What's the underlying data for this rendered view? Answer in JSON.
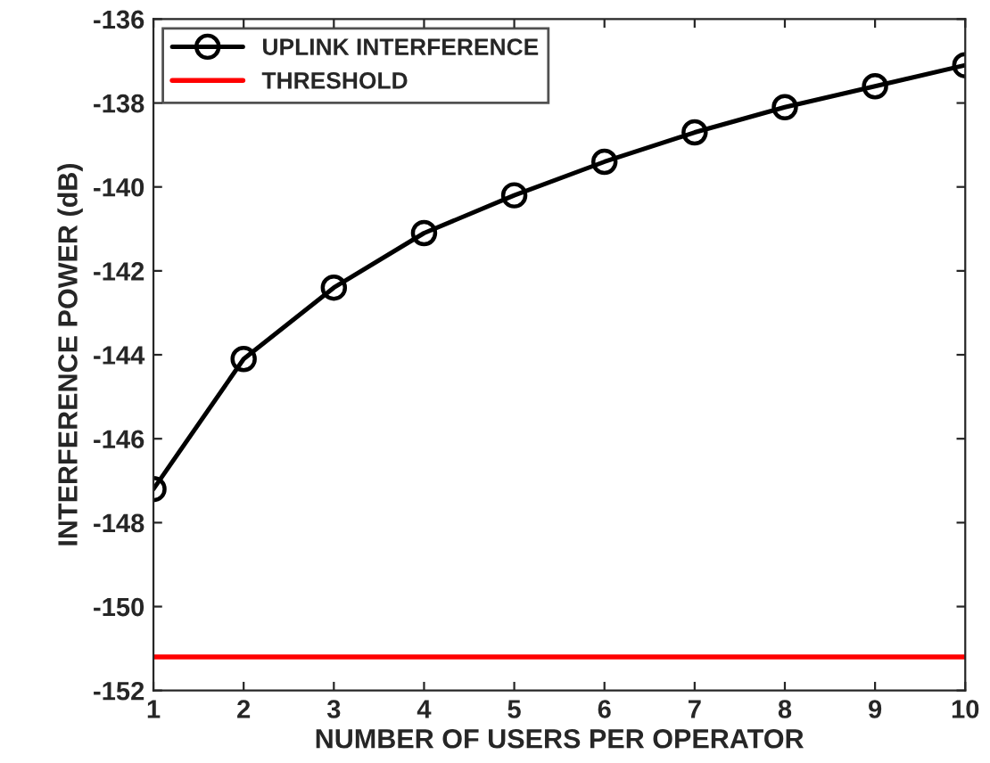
{
  "chart_data": {
    "type": "line",
    "xlabel": "NUMBER OF USERS PER OPERATOR",
    "ylabel": "INTERFERENCE POWER (dB)",
    "x": [
      1,
      2,
      3,
      4,
      5,
      6,
      7,
      8,
      9,
      10
    ],
    "series": [
      {
        "name": "UPLINK INTERFERENCE",
        "color": "#000000",
        "values": [
          -147.2,
          -144.1,
          -142.4,
          -141.1,
          -140.2,
          -139.4,
          -138.7,
          -138.1,
          -137.6,
          -137.1
        ],
        "marker": "circle",
        "line_style": "solid"
      }
    ],
    "ref_lines": [
      {
        "axis": "y",
        "value": -151.2,
        "label": "THRESHOLD",
        "color": "#ff0000"
      }
    ],
    "xlim": [
      1,
      10
    ],
    "xticks": [
      1,
      2,
      3,
      4,
      5,
      6,
      7,
      8,
      9,
      10
    ],
    "ylim": [
      -152,
      -136
    ],
    "yticks": [
      -152,
      -150,
      -148,
      -146,
      -144,
      -142,
      -140,
      -138,
      -136
    ],
    "grid": false,
    "legend": "top left"
  }
}
